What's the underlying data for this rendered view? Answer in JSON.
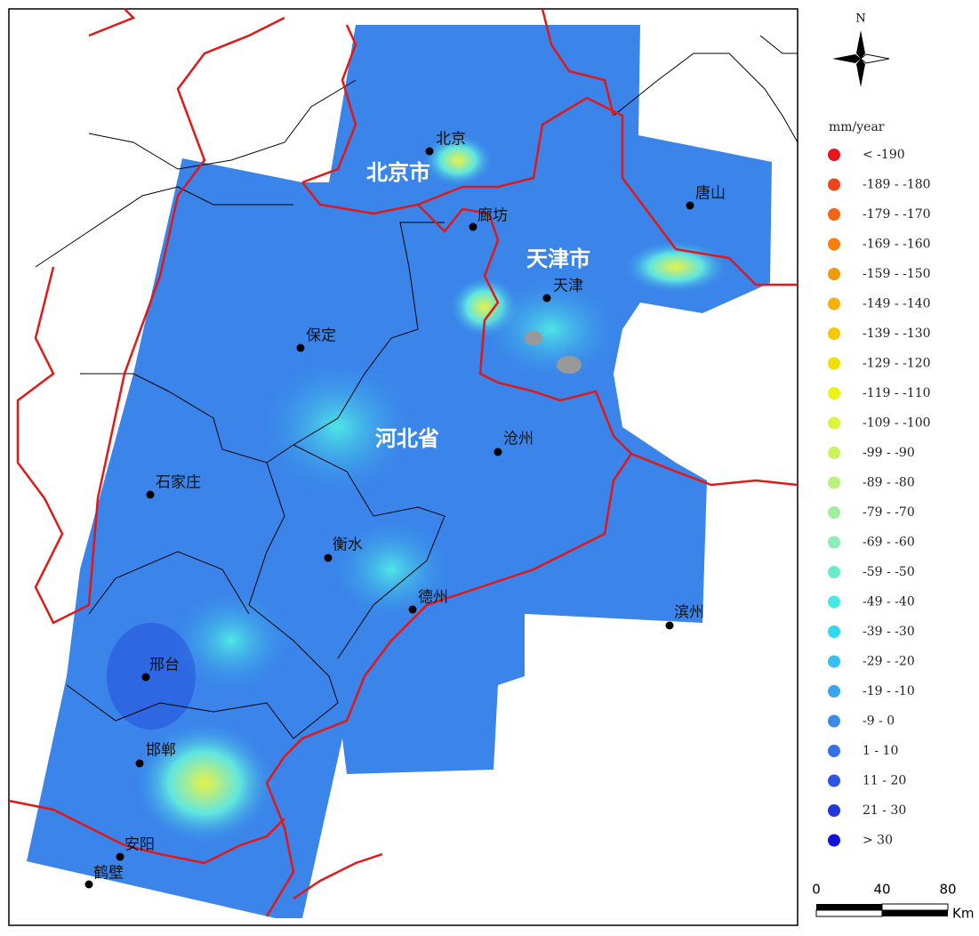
{
  "north": "N",
  "provinces": [
    "北京市",
    "天津市",
    "河北省"
  ],
  "cities": [
    "北京",
    "廊坊",
    "天津",
    "唐山",
    "保定",
    "沧州",
    "石家庄",
    "衡水",
    "德州",
    "滨州",
    "邢台",
    "邯郸",
    "安阳",
    "鹤壁"
  ],
  "legend": {
    "title": "mm/year",
    "items": [
      {
        "label": "< -190",
        "color": "#e8161b"
      },
      {
        "label": "-189 - -180",
        "color": "#ef4418"
      },
      {
        "label": "-179 - -170",
        "color": "#f36414"
      },
      {
        "label": "-169 - -160",
        "color": "#f57e10"
      },
      {
        "label": "-159 - -150",
        "color": "#f6980c"
      },
      {
        "label": "-149 - -140",
        "color": "#f6b108"
      },
      {
        "label": "-139 - -130",
        "color": "#f4c806"
      },
      {
        "label": "-129 - -120",
        "color": "#f1df04"
      },
      {
        "label": "-119 - -110",
        "color": "#eef212"
      },
      {
        "label": "-109 - -100",
        "color": "#def43c"
      },
      {
        "label": "-99 - -90",
        "color": "#cbf35c"
      },
      {
        "label": "-89 - -80",
        "color": "#b6f27c"
      },
      {
        "label": "-79 - -70",
        "color": "#9ff09a"
      },
      {
        "label": "-69 - -60",
        "color": "#88eeb6"
      },
      {
        "label": "-59 - -50",
        "color": "#6aebce"
      },
      {
        "label": "-49 - -40",
        "color": "#48e8e2"
      },
      {
        "label": "-39 - -30",
        "color": "#2fdaf0"
      },
      {
        "label": "-29 - -20",
        "color": "#34c0f0"
      },
      {
        "label": "-19 - -10",
        "color": "#39a5ee"
      },
      {
        "label": "-9 - 0",
        "color": "#3a8aec"
      },
      {
        "label": "1 - 10",
        "color": "#3570e8"
      },
      {
        "label": "11 - 20",
        "color": "#2c55e3"
      },
      {
        "label": "21 - 30",
        "color": "#2238de"
      },
      {
        "label": "> 30",
        "color": "#1014d8"
      }
    ]
  },
  "scale": {
    "ticks": [
      "0",
      "40",
      "80"
    ],
    "unit": "Km"
  }
}
